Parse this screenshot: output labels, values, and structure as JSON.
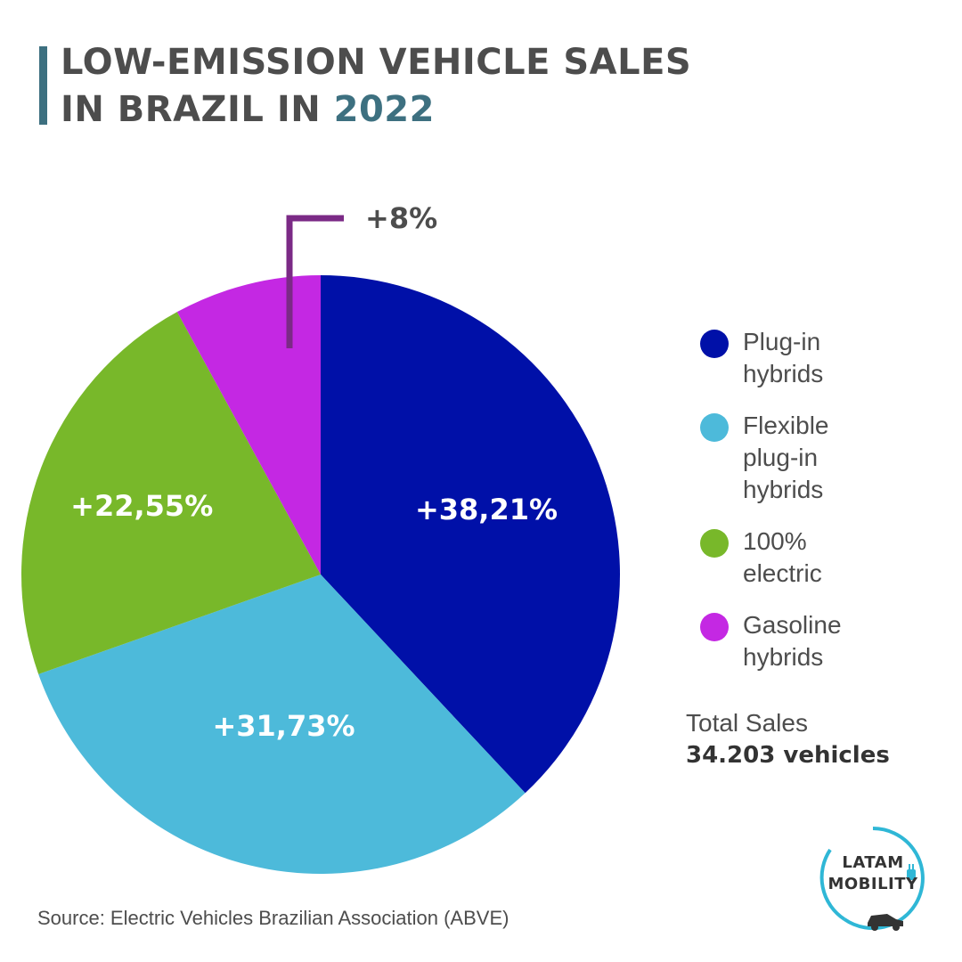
{
  "title": {
    "line1": "LOW-EMISSION VEHICLE SALES",
    "line2_prefix": "IN BRAZIL IN ",
    "line2_year": "2022"
  },
  "colors": {
    "title": "#4d4d4d",
    "accent": "#3d7080",
    "callout": "#7b2a86"
  },
  "chart_data": {
    "type": "pie",
    "slices": [
      {
        "category": "Plug-in hybrids",
        "value": 38.21,
        "label": "+38,21%",
        "color": "#0010a8"
      },
      {
        "category": "Flexible plug-in hybrids",
        "value": 31.73,
        "label": "+31,73%",
        "color": "#4dbada"
      },
      {
        "category": "100% electric",
        "value": 22.55,
        "label": "+22,55%",
        "color": "#78b82a"
      },
      {
        "category": "Gasoline hybrids",
        "value": 8,
        "label": "+8%",
        "color": "#c428e3"
      }
    ]
  },
  "legend": [
    {
      "label": "Plug-in hybrids",
      "color": "#0010a8"
    },
    {
      "label": "Flexible plug-in hybrids",
      "color": "#4dbada"
    },
    {
      "label": "100% electric",
      "color": "#78b82a"
    },
    {
      "label": "Gasoline hybrids",
      "color": "#c428e3"
    }
  ],
  "total": {
    "label": "Total Sales",
    "value": "34.203 vehicles"
  },
  "source": "Source: Electric Vehicles Brazilian Association (ABVE)",
  "logo": {
    "line1": "LATAM",
    "line2": "MOBILITY",
    "icons": [
      "plug-icon",
      "car-icon"
    ]
  }
}
